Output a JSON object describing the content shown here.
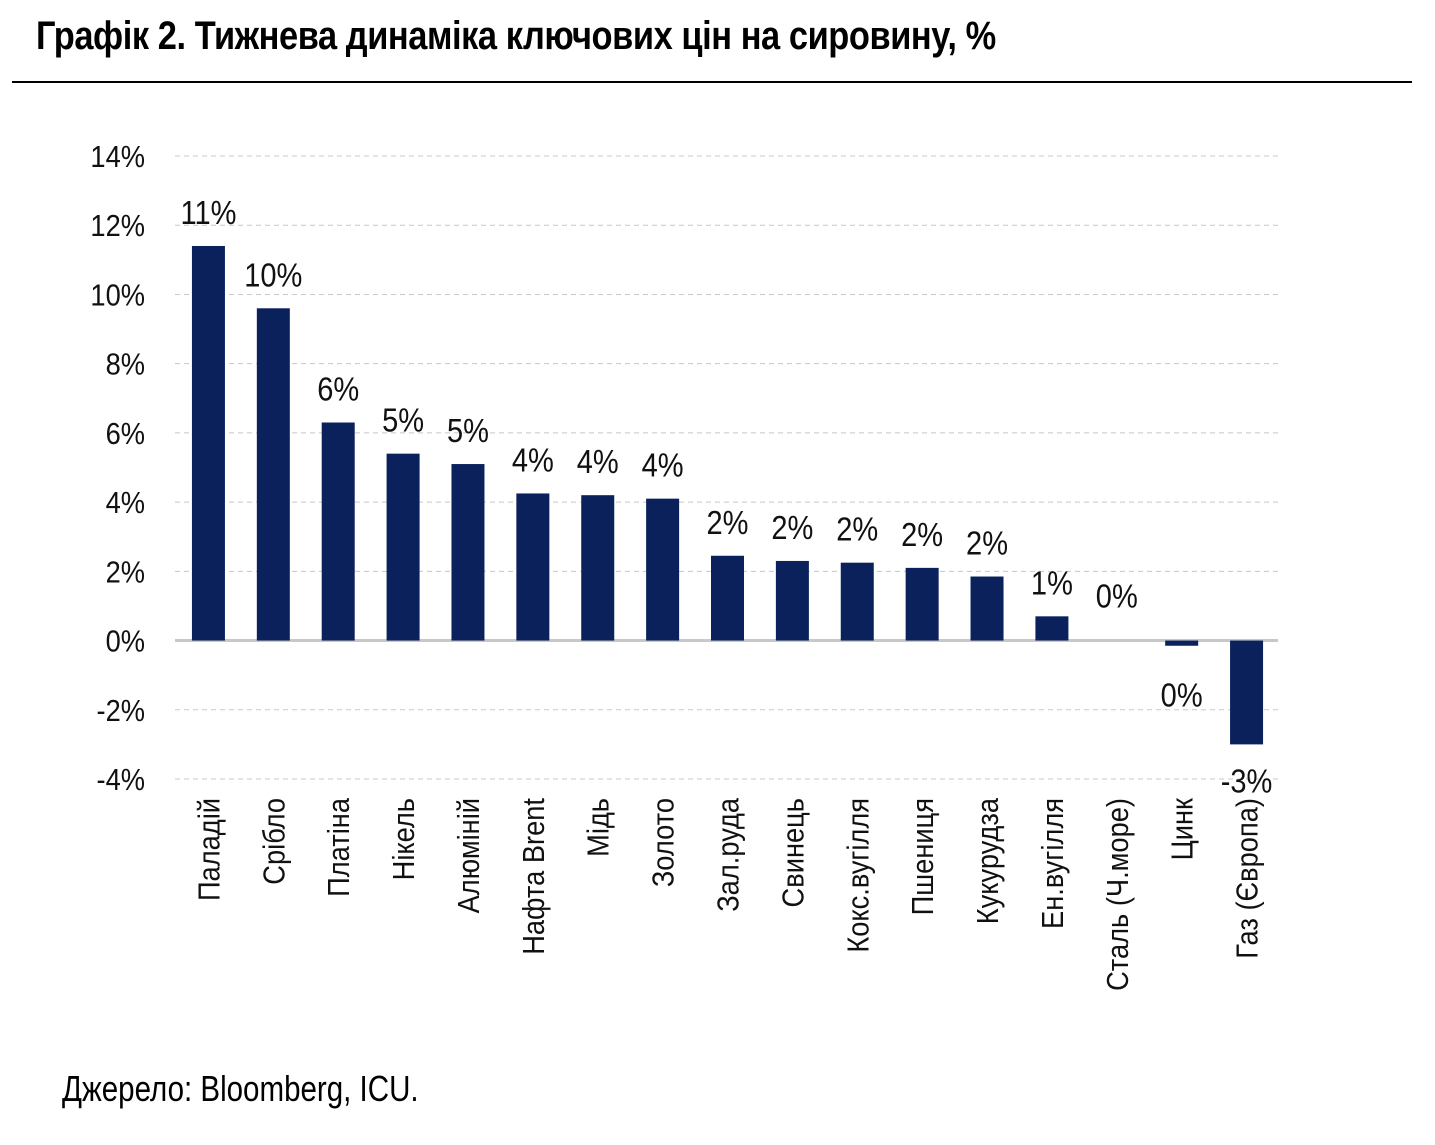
{
  "title": "Графік 2. Тижнева динаміка ключових цін на сировину, %",
  "source": "Джерело: Bloomberg, ICU.",
  "colors": {
    "bar": "#0a215c",
    "grid": "#c8c8c8",
    "zero_line": "#c8c8c8"
  },
  "chart_data": {
    "type": "bar",
    "title": "Графік 2. Тижнева динаміка ключових цін на сировину, %",
    "xlabel": "",
    "ylabel": "",
    "ylim": [
      -4,
      14
    ],
    "yticks": [
      -4,
      -2,
      0,
      2,
      4,
      6,
      8,
      10,
      12,
      14
    ],
    "ytick_labels": [
      "-4%",
      "-2%",
      "0%",
      "2%",
      "4%",
      "6%",
      "8%",
      "10%",
      "12%",
      "14%"
    ],
    "grid": true,
    "legend": "none",
    "categories": [
      "Паладій",
      "Срібло",
      "Платіна",
      "Нікель",
      "Алюміній",
      "Нафта Brent",
      "Мідь",
      "Золото",
      "Зал.руда",
      "Свинець",
      "Кокс.вугілля",
      "Пшениця",
      "Кукурудза",
      "Ен.вугілля",
      "Сталь (Ч.море)",
      "Цинк",
      "Газ (Європа)"
    ],
    "values": [
      11.4,
      9.6,
      6.3,
      5.4,
      5.1,
      4.25,
      4.2,
      4.1,
      2.45,
      2.3,
      2.25,
      2.1,
      1.85,
      0.7,
      0.0,
      -0.15,
      -3.0
    ],
    "data_labels": [
      "11%",
      "10%",
      "6%",
      "5%",
      "5%",
      "4%",
      "4%",
      "4%",
      "2%",
      "2%",
      "2%",
      "2%",
      "2%",
      "1%",
      "0%",
      "0%",
      "-3%"
    ]
  }
}
